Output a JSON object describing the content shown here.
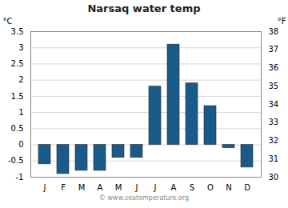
{
  "chart_data": {
    "type": "bar",
    "title": "Narsaq water temp",
    "categories": [
      "J",
      "F",
      "M",
      "A",
      "M",
      "J",
      "J",
      "A",
      "S",
      "O",
      "N",
      "D"
    ],
    "values": [
      -0.6,
      -0.9,
      -0.8,
      -0.8,
      -0.4,
      -0.4,
      1.8,
      3.1,
      1.9,
      1.2,
      -0.1,
      -0.7
    ],
    "color": "#1a5a8a",
    "ylabel": "°C",
    "y2label": "°F",
    "ylim": [
      -1.0,
      3.5
    ],
    "yticks": [
      -1.0,
      -0.5,
      0.0,
      0.5,
      1.0,
      1.5,
      2.0,
      2.5,
      3.0,
      3.5
    ],
    "y2lim": [
      30,
      38
    ],
    "y2ticks": [
      30,
      31,
      32,
      33,
      34,
      35,
      36,
      37,
      38
    ],
    "grid": true,
    "caption": "© www.seatemperature.org"
  }
}
